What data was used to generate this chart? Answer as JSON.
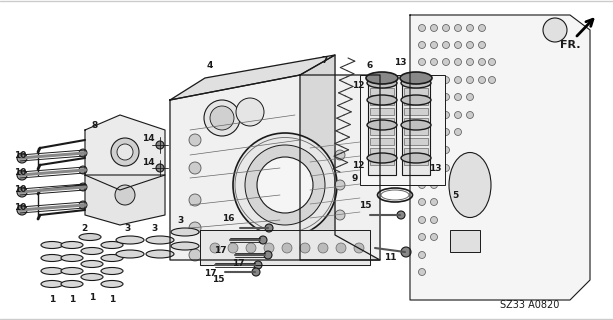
{
  "bg_color": "#ffffff",
  "diagram_code": "SZ33 A0820",
  "fr_label": "FR.",
  "figsize": [
    6.13,
    3.2
  ],
  "dpi": 100,
  "line_color": "#1a1a1a",
  "lw": 0.7
}
